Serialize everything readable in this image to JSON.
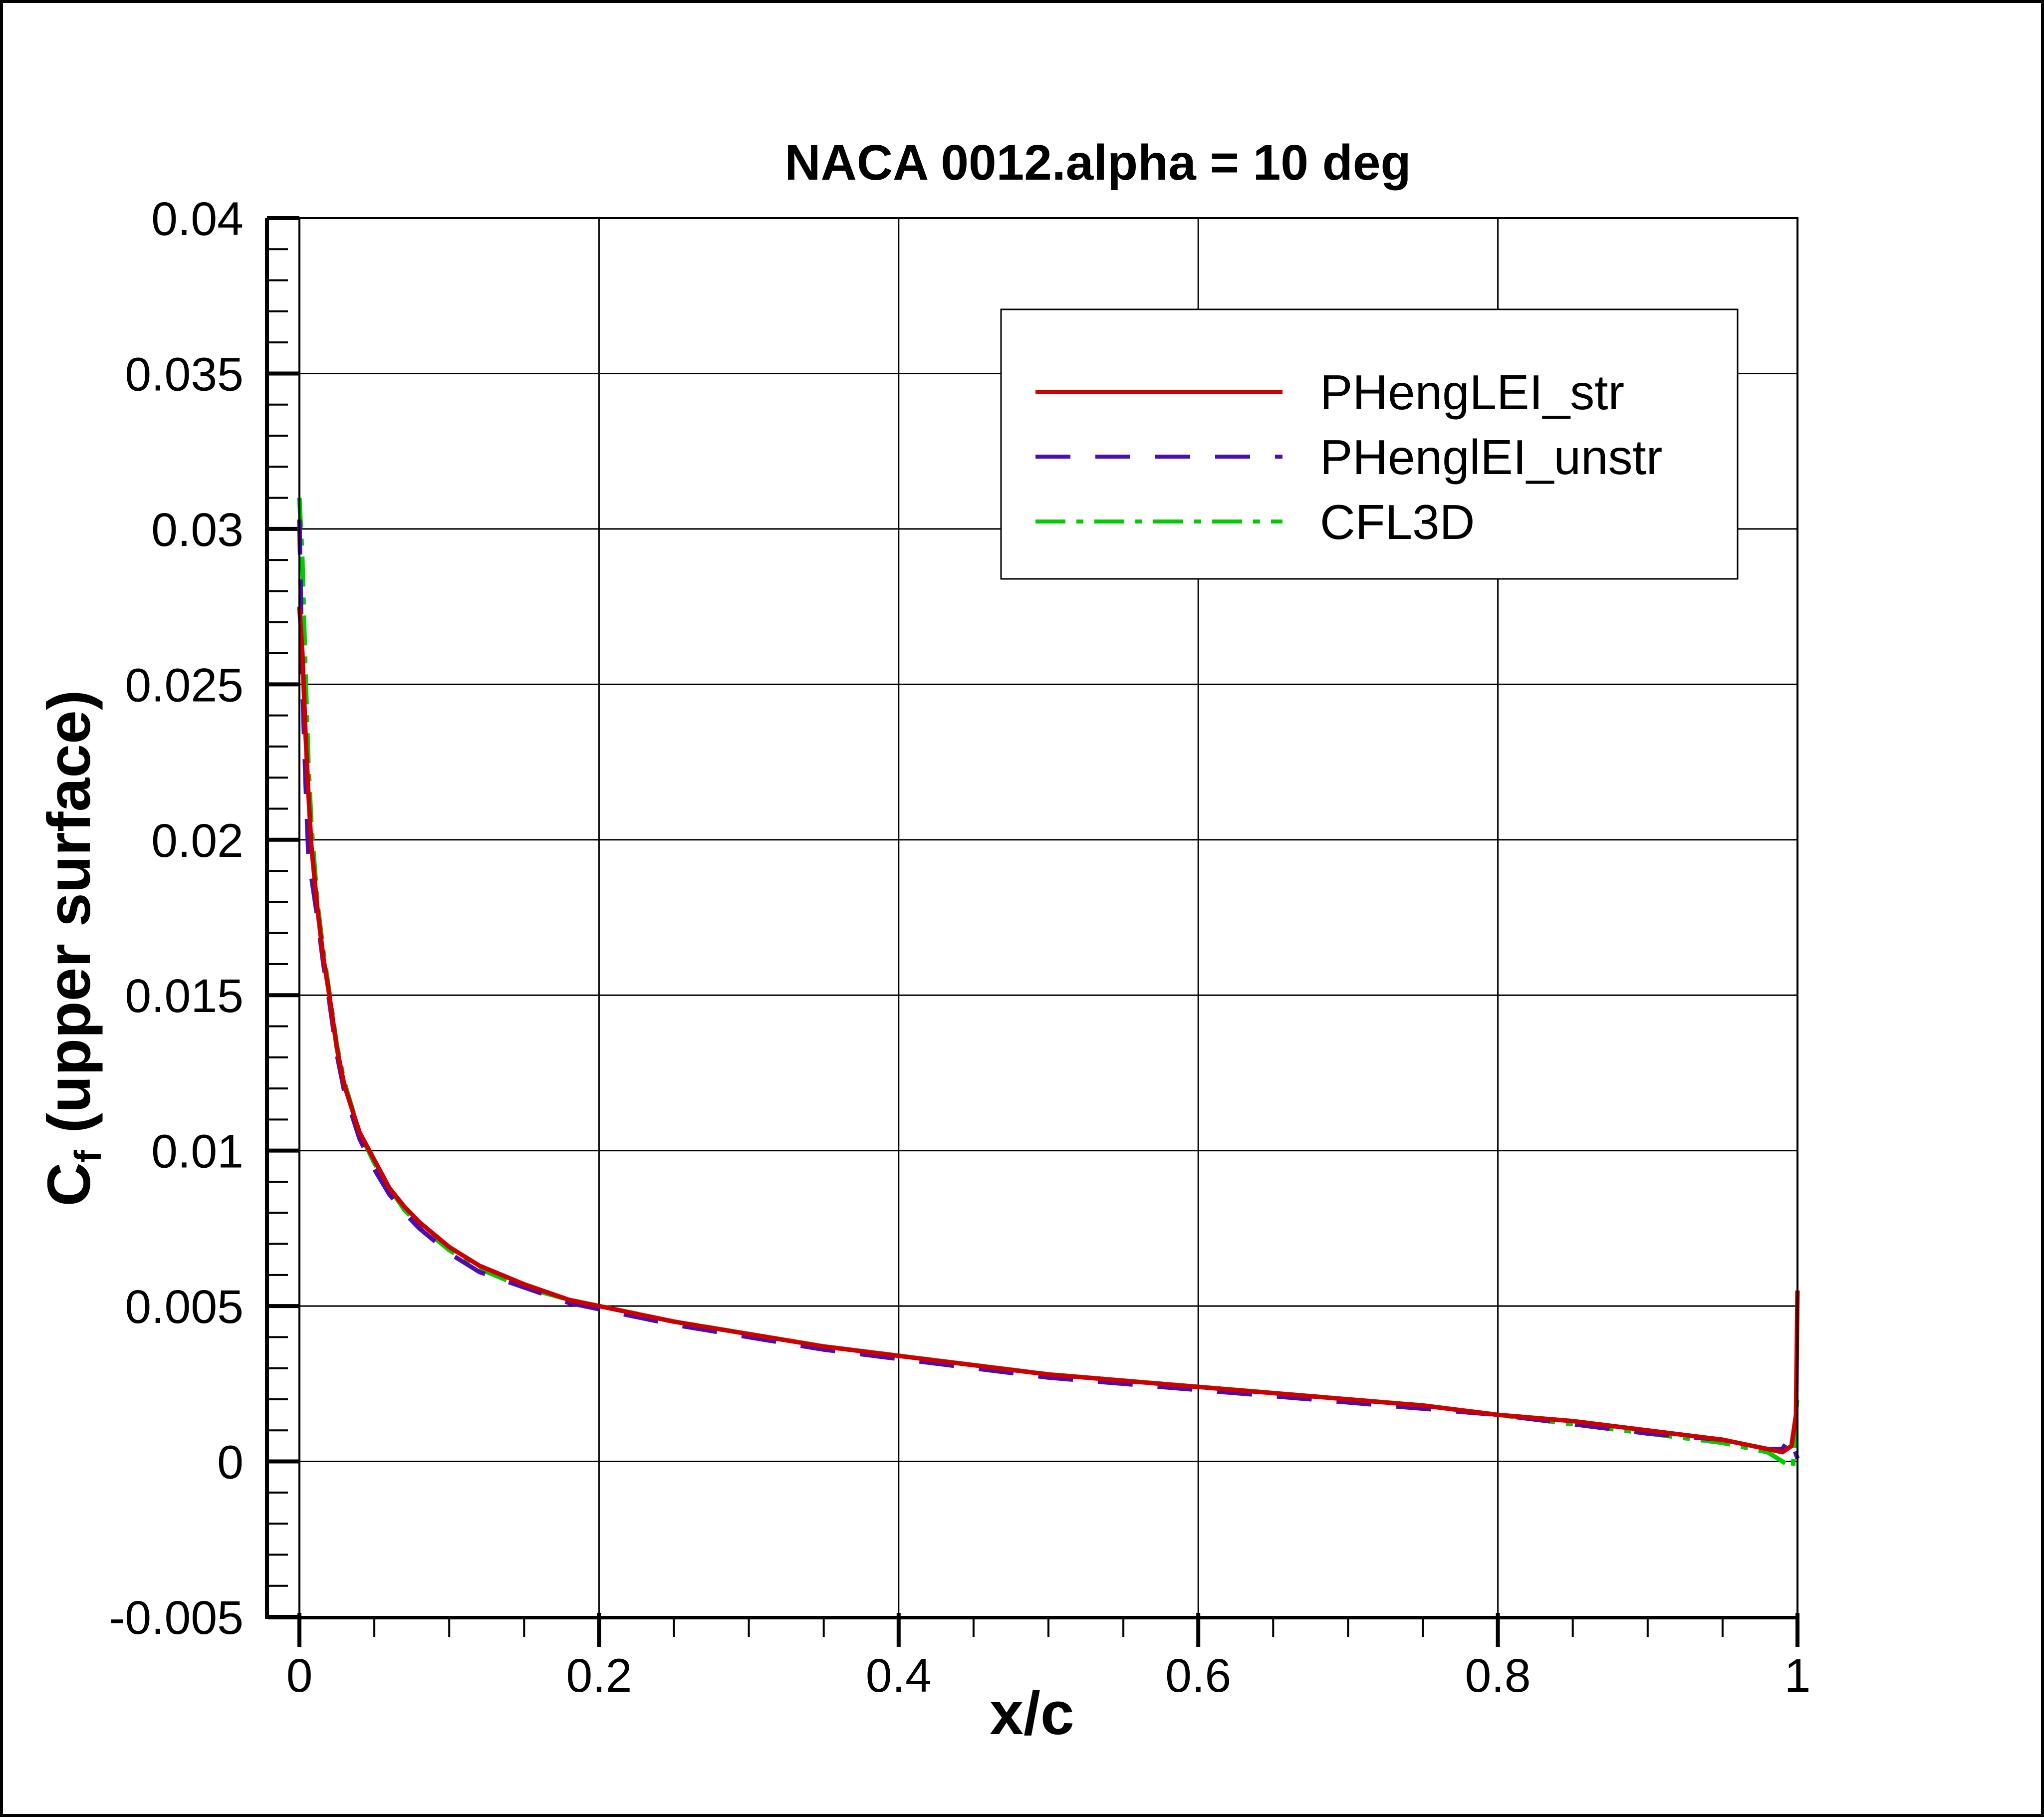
{
  "chart_data": {
    "type": "line",
    "title": "NACA 0012.alpha = 10 deg",
    "xlabel": "x/c",
    "ylabel_main": "C",
    "ylabel_sub": "f",
    "ylabel_rest": " (upper surface)",
    "xlim": [
      0,
      1
    ],
    "ylim": [
      -0.005,
      0.04
    ],
    "x_ticks": [
      0,
      0.2,
      0.4,
      0.6,
      0.8,
      1
    ],
    "x_tick_labels": [
      "0",
      "0.2",
      "0.4",
      "0.6",
      "0.8",
      "1"
    ],
    "y_ticks": [
      -0.005,
      0,
      0.005,
      0.01,
      0.015,
      0.02,
      0.025,
      0.03,
      0.035,
      0.04
    ],
    "y_tick_labels": [
      "-0.005",
      "0",
      "0.005",
      "0.01",
      "0.015",
      "0.02",
      "0.025",
      "0.03",
      "0.035",
      "0.04"
    ],
    "grid": true,
    "legend_position": "top-right",
    "series": [
      {
        "name": "PHengLEI_str",
        "color": "#cc0000",
        "dash": "solid",
        "x": [
          0.0,
          0.002,
          0.004,
          0.006,
          0.008,
          0.012,
          0.016,
          0.02,
          0.025,
          0.03,
          0.04,
          0.05,
          0.06,
          0.07,
          0.08,
          0.1,
          0.12,
          0.15,
          0.18,
          0.2,
          0.25,
          0.3,
          0.35,
          0.4,
          0.45,
          0.5,
          0.55,
          0.6,
          0.65,
          0.7,
          0.75,
          0.8,
          0.85,
          0.9,
          0.95,
          0.98,
          0.99,
          0.996,
          0.999,
          1.0
        ],
        "y": [
          0.0275,
          0.026,
          0.0235,
          0.0215,
          0.0198,
          0.0178,
          0.0162,
          0.015,
          0.0133,
          0.0121,
          0.0106,
          0.0097,
          0.0088,
          0.0082,
          0.0077,
          0.0069,
          0.0063,
          0.0057,
          0.0052,
          0.005,
          0.0045,
          0.0041,
          0.0037,
          0.0034,
          0.0031,
          0.0028,
          0.0026,
          0.0024,
          0.0022,
          0.002,
          0.0018,
          0.0015,
          0.0013,
          0.001,
          0.0007,
          0.0004,
          0.0003,
          0.0005,
          0.0015,
          0.0055
        ]
      },
      {
        "name": "PHenglEI_unstr",
        "color": "#4b0faf",
        "dash": "dashed",
        "x": [
          0.0,
          0.002,
          0.004,
          0.006,
          0.008,
          0.012,
          0.016,
          0.02,
          0.025,
          0.03,
          0.04,
          0.05,
          0.06,
          0.07,
          0.08,
          0.1,
          0.12,
          0.15,
          0.18,
          0.2,
          0.25,
          0.3,
          0.35,
          0.4,
          0.45,
          0.5,
          0.55,
          0.6,
          0.65,
          0.7,
          0.75,
          0.8,
          0.85,
          0.9,
          0.95,
          0.98,
          0.99,
          0.995,
          1.0
        ],
        "y": [
          0.0303,
          0.025,
          0.022,
          0.0195,
          0.0188,
          0.0175,
          0.016,
          0.0148,
          0.0131,
          0.0119,
          0.0104,
          0.0094,
          0.0086,
          0.008,
          0.0075,
          0.0067,
          0.0061,
          0.0056,
          0.0051,
          0.0049,
          0.0044,
          0.004,
          0.0036,
          0.0033,
          0.003,
          0.0027,
          0.0025,
          0.0023,
          0.0021,
          0.0019,
          0.0017,
          0.0015,
          0.0012,
          0.0009,
          0.0007,
          0.0004,
          0.0004,
          0.0008,
          0.0001
        ]
      },
      {
        "name": "CFL3D",
        "color": "#00cc00",
        "dash": "dashdot",
        "x": [
          0.0,
          0.002,
          0.004,
          0.006,
          0.008,
          0.012,
          0.016,
          0.02,
          0.025,
          0.03,
          0.04,
          0.05,
          0.06,
          0.07,
          0.08,
          0.1,
          0.12,
          0.15,
          0.18,
          0.2,
          0.25,
          0.3,
          0.35,
          0.4,
          0.45,
          0.5,
          0.55,
          0.6,
          0.65,
          0.7,
          0.75,
          0.8,
          0.85,
          0.9,
          0.95,
          0.98,
          0.99,
          0.997,
          1.0
        ],
        "y": [
          0.031,
          0.029,
          0.0255,
          0.0225,
          0.0205,
          0.018,
          0.0164,
          0.0151,
          0.0134,
          0.0122,
          0.0106,
          0.0096,
          0.0088,
          0.0081,
          0.0076,
          0.0068,
          0.0062,
          0.0056,
          0.0052,
          0.005,
          0.0045,
          0.0041,
          0.0037,
          0.0034,
          0.0031,
          0.0028,
          0.0026,
          0.0024,
          0.0022,
          0.002,
          0.0018,
          0.0015,
          0.0012,
          0.0009,
          0.0006,
          0.0003,
          0.0,
          -0.0002,
          0.0022
        ]
      }
    ]
  }
}
